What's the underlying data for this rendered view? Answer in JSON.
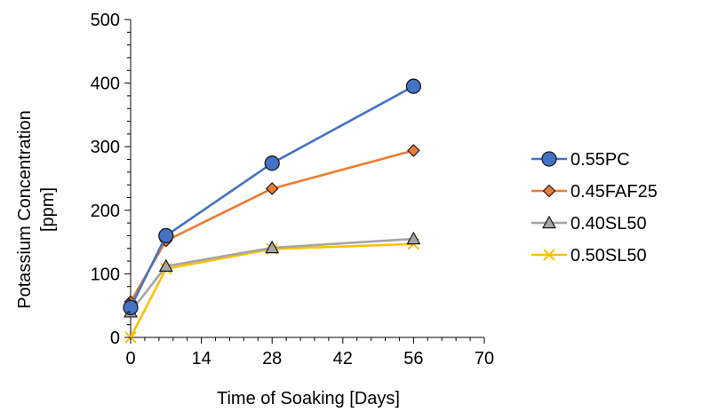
{
  "chart_data": {
    "type": "line",
    "title": "",
    "xlabel": "Time of Soaking [Days]",
    "ylabel_lines": [
      "Potassium Concentration",
      "[ppm]"
    ],
    "xlim": [
      0,
      70
    ],
    "ylim": [
      0,
      500
    ],
    "x_ticks": [
      "0",
      "14",
      "28",
      "42",
      "56",
      "70"
    ],
    "y_ticks": [
      "0",
      "100",
      "200",
      "300",
      "400",
      "500"
    ],
    "grid": false,
    "legend_position": "right",
    "series": [
      {
        "name": "0.55PC",
        "marker": "circle",
        "color": "#4472C4",
        "x": [
          0,
          7,
          28,
          56
        ],
        "y": [
          47,
          160,
          274,
          395
        ]
      },
      {
        "name": "0.45FAF25",
        "marker": "diamond",
        "color": "#ED7D31",
        "x": [
          0,
          7,
          28,
          56
        ],
        "y": [
          56,
          152,
          234,
          294
        ]
      },
      {
        "name": "0.40SL50",
        "marker": "triangle",
        "color": "#A5A5A5",
        "x": [
          0,
          7,
          28,
          56
        ],
        "y": [
          40,
          112,
          141,
          155
        ]
      },
      {
        "name": "0.50SL50",
        "marker": "x",
        "color": "#FFC000",
        "x": [
          0,
          7,
          28,
          56
        ],
        "y": [
          0,
          108,
          139,
          147
        ]
      }
    ]
  }
}
